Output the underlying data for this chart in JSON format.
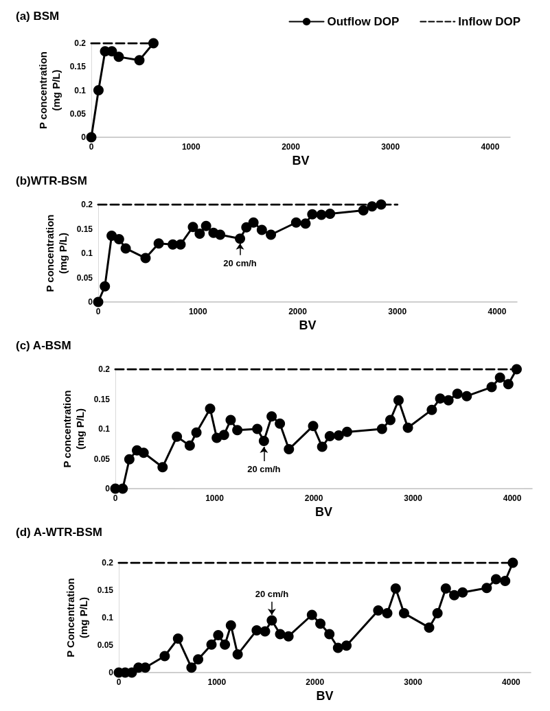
{
  "chart_data": [
    {
      "type": "line",
      "title": "(a) BSM",
      "xlabel": "BV",
      "ylabel": "P concentration (mg P/L)",
      "xlim": [
        0,
        4200
      ],
      "xticks": [
        0,
        1000,
        2000,
        3000,
        4000
      ],
      "ylim": [
        0,
        0.2
      ],
      "yticks": [
        0,
        0.05,
        0.1,
        0.15,
        0.2
      ],
      "grid": false,
      "legend": "top right",
      "series": [
        {
          "name": "Outflow DOP",
          "color": "#000000",
          "marker": "circle",
          "line_style": "solid",
          "x": [
            0,
            72,
            138,
            206,
            275,
            482,
            623
          ],
          "values": [
            0,
            0.1,
            0.183,
            0.183,
            0.171,
            0.164,
            0.2
          ]
        },
        {
          "name": "Inflow DOP",
          "color": "#000000",
          "marker": "none",
          "line_style": "dashed",
          "x": [
            0,
            623
          ],
          "values": [
            0.2,
            0.2
          ]
        }
      ]
    },
    {
      "type": "line",
      "title": "(b)WTR-BSM",
      "xlabel": "BV",
      "ylabel": "P concentration (mg P/L)",
      "xlim": [
        0,
        4200
      ],
      "xticks": [
        0,
        1000,
        2000,
        3000,
        4000
      ],
      "ylim": [
        0,
        0.2
      ],
      "yticks": [
        0,
        0.05,
        0.1,
        0.15,
        0.2
      ],
      "grid": false,
      "legend": false,
      "annotations": [
        {
          "text": "20 cm/h",
          "x": 1422,
          "y": 0.13
        }
      ],
      "series": [
        {
          "color": "#000000",
          "marker": "circle",
          "line_style": "solid",
          "x": [
            0,
            67,
            135,
            209,
            276,
            475,
            607,
            748,
            826,
            950,
            1018,
            1082,
            1156,
            1223,
            1422,
            1486,
            1557,
            1641,
            1732,
            1985,
            2079,
            2147,
            2238,
            2325,
            2659,
            2746,
            2837
          ],
          "values": [
            0,
            0.032,
            0.136,
            0.129,
            0.11,
            0.09,
            0.12,
            0.118,
            0.118,
            0.154,
            0.14,
            0.156,
            0.142,
            0.138,
            0.13,
            0.153,
            0.163,
            0.148,
            0.138,
            0.163,
            0.161,
            0.18,
            0.179,
            0.181,
            0.188,
            0.196,
            0.2
          ]
        },
        {
          "color": "#000000",
          "marker": "none",
          "line_style": "dashed",
          "x": [
            0,
            3000
          ],
          "values": [
            0.2,
            0.2
          ]
        }
      ]
    },
    {
      "type": "line",
      "title": "(c) A-BSM",
      "xlabel": "BV",
      "ylabel": "P concentration (mg P/L)",
      "xlim": [
        0,
        4200
      ],
      "xticks": [
        0,
        1000,
        2000,
        3000,
        4000
      ],
      "ylim": [
        0,
        0.2
      ],
      "yticks": [
        0,
        0.05,
        0.1,
        0.15,
        0.2
      ],
      "grid": false,
      "legend": false,
      "annotations": [
        {
          "text": "20 cm/h",
          "x": 1497,
          "y": 0.08
        }
      ],
      "series": [
        {
          "color": "#000000",
          "marker": "circle",
          "line_style": "solid",
          "x": [
            0,
            74,
            141,
            218,
            285,
            476,
            620,
            750,
            817,
            955,
            1022,
            1095,
            1162,
            1229,
            1430,
            1497,
            1575,
            1658,
            1749,
            1993,
            2084,
            2161,
            2251,
            2335,
            2687,
            2771,
            2854,
            2948,
            3189,
            3273,
            3357,
            3447,
            3541,
            3792,
            3876,
            3960,
            4044
          ],
          "values": [
            0,
            0,
            0.049,
            0.064,
            0.06,
            0.036,
            0.087,
            0.072,
            0.094,
            0.134,
            0.085,
            0.09,
            0.115,
            0.098,
            0.1,
            0.08,
            0.121,
            0.109,
            0.066,
            0.105,
            0.07,
            0.088,
            0.089,
            0.095,
            0.1,
            0.115,
            0.148,
            0.102,
            0.132,
            0.151,
            0.148,
            0.159,
            0.155,
            0.17,
            0.186,
            0.175,
            0.2
          ]
        },
        {
          "color": "#000000",
          "marker": "none",
          "line_style": "dashed",
          "x": [
            0,
            4044
          ],
          "values": [
            0.2,
            0.2
          ]
        }
      ]
    },
    {
      "type": "line",
      "title": "(d) A-WTR-BSM",
      "xlabel": "BV",
      "ylabel": "P Concentration (mg P/L)",
      "xlim": [
        0,
        4200
      ],
      "xticks": [
        0,
        1000,
        2000,
        3000,
        4000
      ],
      "ylim": [
        0,
        0.2
      ],
      "yticks": [
        0,
        0.05,
        0.1,
        0.15,
        0.2
      ],
      "grid": false,
      "legend": false,
      "annotations": [
        {
          "text": "20 cm/h",
          "x": 1560,
          "y": 0.095
        }
      ],
      "series": [
        {
          "color": "#000000",
          "marker": "circle",
          "line_style": "solid",
          "x": [
            0,
            65,
            133,
            201,
            270,
            468,
            604,
            741,
            809,
            945,
            1014,
            1082,
            1143,
            1212,
            1406,
            1491,
            1560,
            1645,
            1730,
            1969,
            2055,
            2147,
            2235,
            2321,
            2645,
            2737,
            2823,
            2908,
            3164,
            3249,
            3334,
            3420,
            3505,
            3751,
            3846,
            3939,
            4017
          ],
          "values": [
            0,
            0,
            0,
            0.009,
            0.009,
            0.03,
            0.062,
            0.009,
            0.024,
            0.051,
            0.068,
            0.051,
            0.086,
            0.033,
            0.077,
            0.075,
            0.095,
            0.07,
            0.066,
            0.105,
            0.089,
            0.07,
            0.045,
            0.049,
            0.113,
            0.108,
            0.153,
            0.108,
            0.082,
            0.108,
            0.153,
            0.141,
            0.146,
            0.154,
            0.17,
            0.167,
            0.2
          ]
        },
        {
          "color": "#000000",
          "marker": "none",
          "line_style": "dashed",
          "x": [
            0,
            4017
          ],
          "values": [
            0.2,
            0.2
          ]
        }
      ]
    }
  ]
}
